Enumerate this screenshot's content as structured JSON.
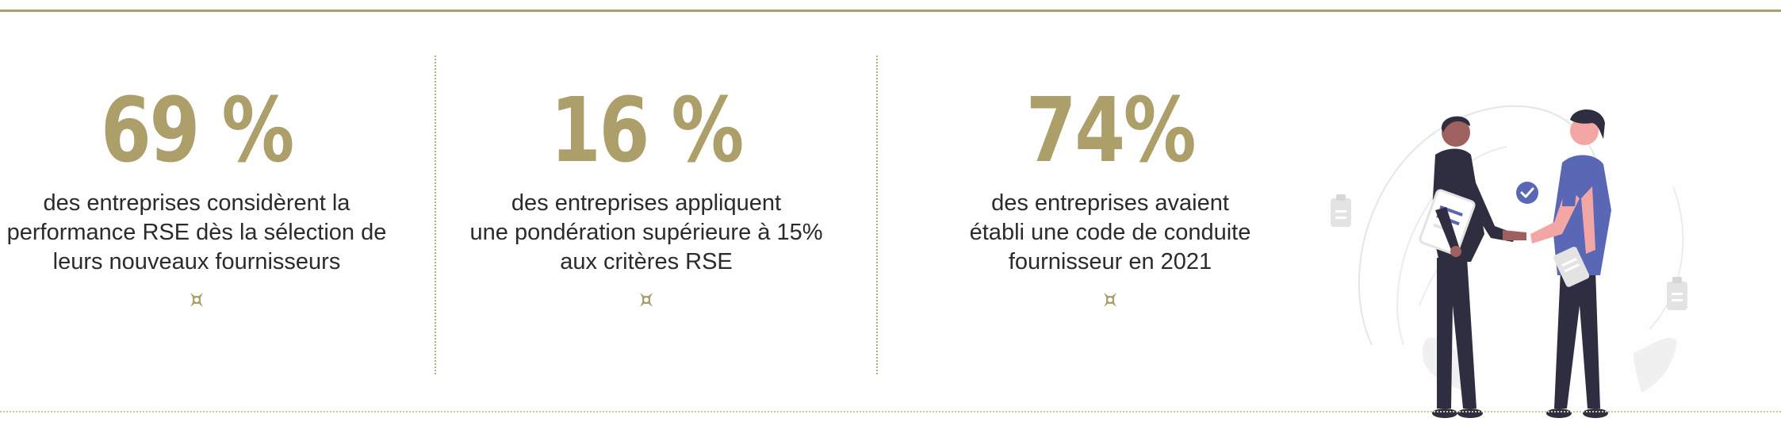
{
  "stats": [
    {
      "value": "69 %",
      "lines": [
        "des entreprises considèrent la",
        "performance RSE dès la sélection de",
        "leurs nouveaux fournisseurs"
      ]
    },
    {
      "value": "16 %",
      "lines": [
        "des entreprises appliquent",
        "une pondération supérieure à 15%",
        "aux critères RSE"
      ]
    },
    {
      "value": "74%",
      "lines": [
        "des entreprises avaient",
        "établi une code de conduite",
        "fournisseur en 2021"
      ]
    }
  ],
  "colors": {
    "accent_gold": "#ad9f69",
    "text": "#2b2b2b",
    "shirt_blue": "#5a67b5",
    "dark_navy": "#2f2e41",
    "skin_light": "#f2a7a4",
    "skin_dark": "#9e6160"
  },
  "icons": {
    "ornament": "gold-ornament-icon",
    "illustration": "handshake-illustration"
  }
}
